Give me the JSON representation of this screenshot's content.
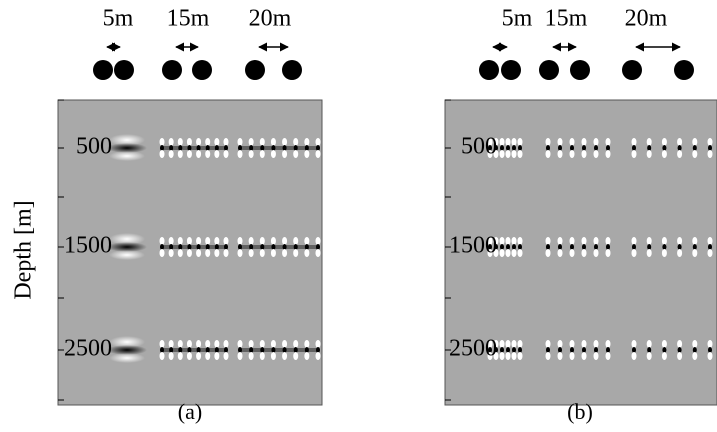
{
  "panels": [
    {
      "label": "(a)",
      "y_axis_label": "Depth [m]",
      "y_ticks": [
        "500",
        "1500",
        "2500"
      ],
      "spacings": [
        "5m",
        "15m",
        "20m"
      ]
    },
    {
      "label": "(b)",
      "y_ticks": [
        "500",
        "1500",
        "2500"
      ],
      "spacings": [
        "5m",
        "15m",
        "20m"
      ]
    }
  ]
}
